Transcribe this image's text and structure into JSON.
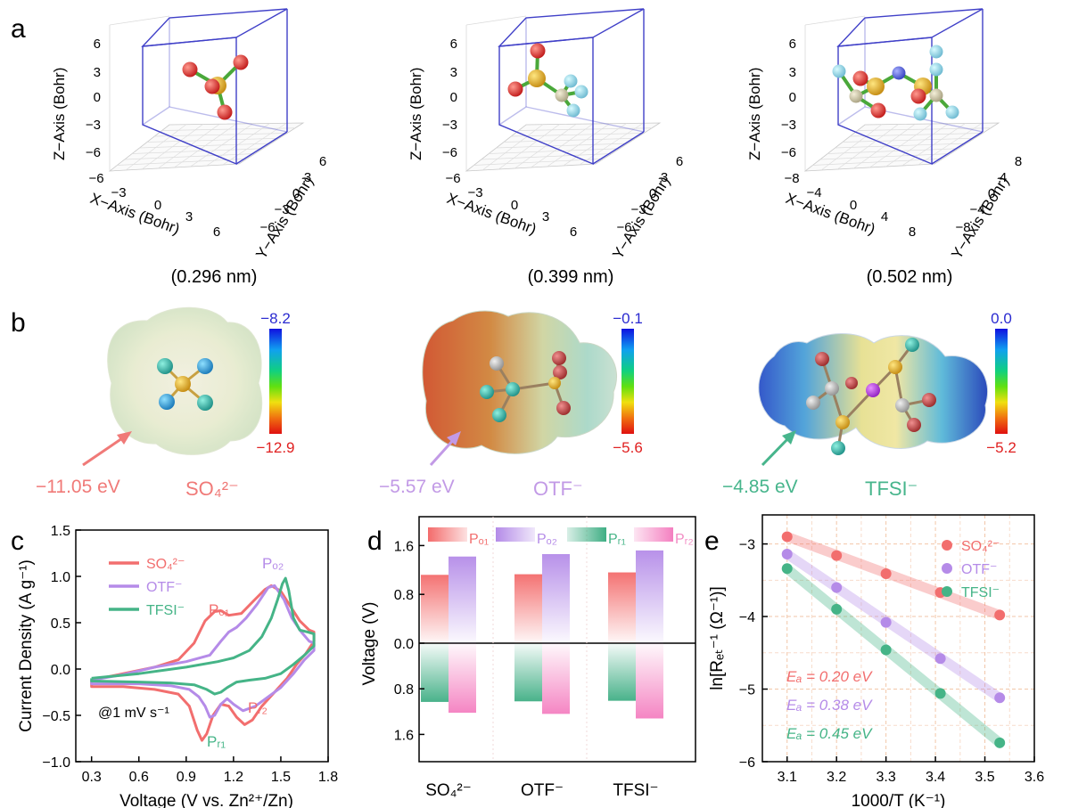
{
  "panel_labels": [
    "a",
    "b",
    "c",
    "d",
    "e"
  ],
  "panel_a": {
    "molecules": [
      {
        "size_label": "(0.296 nm)",
        "x_label": "X−Axis (Bohr)",
        "y_label": "Y−Axis (Bohr)",
        "z_label": "Z−Axis (Bohr)",
        "x_ticks": [
          "−6",
          "−3",
          "0",
          "3",
          "6"
        ],
        "y_ticks": [
          "−6",
          "−3",
          "0",
          "3",
          "6"
        ],
        "z_ticks": [
          "−6",
          "−3",
          "0",
          "3",
          "6"
        ]
      },
      {
        "size_label": "(0.399 nm)",
        "x_label": "X−Axis (Bohr)",
        "y_label": "Y−Axis (Bohr)",
        "z_label": "Z−Axis (Bohr)",
        "x_ticks": [
          "−6",
          "−3",
          "0",
          "3",
          "6"
        ],
        "y_ticks": [
          "−6",
          "−3",
          "0",
          "3",
          "6"
        ],
        "z_ticks": [
          "−6",
          "−3",
          "0",
          "3",
          "6"
        ]
      },
      {
        "size_label": "(0.502 nm)",
        "x_label": "X−Axis (Bohr)",
        "y_label": "Y−Axis (Bohr)",
        "z_label": "Z−Axis (Bohr)",
        "x_ticks": [
          "−8",
          "−4",
          "0",
          "4",
          "8"
        ],
        "y_ticks": [
          "−8",
          "−4",
          "0",
          "4",
          "8"
        ],
        "z_ticks": [
          "−6",
          "−3",
          "0",
          "3",
          "6"
        ]
      }
    ]
  },
  "panel_b": {
    "maps": [
      {
        "ion": "SO₄²⁻",
        "energy": "−11.05 eV",
        "scale_max": "−8.2",
        "scale_min": "−12.9",
        "color": "#f07a78"
      },
      {
        "ion": "OTF⁻",
        "energy": "−5.57 eV",
        "scale_max": "−0.1",
        "scale_min": "−5.6",
        "color": "#c29ae6"
      },
      {
        "ion": "TFSI⁻",
        "energy": "−4.85 eV",
        "scale_max": "0.0",
        "scale_min": "−5.2",
        "color": "#47b58c"
      }
    ]
  },
  "colors": {
    "so4": "#f26e6e",
    "otf": "#b58be8",
    "tfsi": "#45b487",
    "pr2_pink": "#f28bc4"
  },
  "chart_data": [
    {
      "panel": "c",
      "type": "line",
      "xlabel": "Voltage (V vs. Zn²⁺/Zn)",
      "ylabel": "Current Density (A g⁻¹)",
      "xlim": [
        0.2,
        1.8
      ],
      "ylim": [
        -1.0,
        1.5
      ],
      "xticks": [
        "0.3",
        "0.6",
        "0.9",
        "1.2",
        "1.5",
        "1.8"
      ],
      "yticks": [
        "−1.0",
        "−0.5",
        "0.0",
        "0.5",
        "1.0",
        "1.5"
      ],
      "annotation": "@1 mV s⁻¹",
      "peak_labels": [
        "Pₒ₁",
        "Pₒ₂",
        "Pᵣ₁",
        "Pᵣ₂"
      ],
      "legend": [
        "SO₄²⁻",
        "OTF⁻",
        "TFSI⁻"
      ],
      "series": [
        {
          "name": "SO₄²⁻",
          "x": [
            0.3,
            0.5,
            0.7,
            0.85,
            0.95,
            1.02,
            1.08,
            1.12,
            1.17,
            1.25,
            1.33,
            1.4,
            1.44,
            1.5,
            1.56,
            1.62,
            1.68,
            1.71,
            1.71,
            1.66,
            1.6,
            1.54,
            1.46,
            1.38,
            1.32,
            1.27,
            1.22,
            1.17,
            1.12,
            1.07,
            1.03,
            1.0,
            0.97,
            0.92,
            0.85,
            0.7,
            0.5,
            0.3,
            0.3
          ],
          "y": [
            -0.12,
            -0.05,
            0.02,
            0.1,
            0.28,
            0.52,
            0.62,
            0.63,
            0.58,
            0.6,
            0.74,
            0.86,
            0.9,
            0.84,
            0.68,
            0.52,
            0.42,
            0.4,
            0.3,
            0.17,
            0.05,
            -0.1,
            -0.25,
            -0.4,
            -0.55,
            -0.6,
            -0.52,
            -0.4,
            -0.38,
            -0.5,
            -0.7,
            -0.77,
            -0.66,
            -0.4,
            -0.27,
            -0.22,
            -0.19,
            -0.19,
            -0.12
          ]
        },
        {
          "name": "OTF⁻",
          "x": [
            0.3,
            0.5,
            0.7,
            0.9,
            1.05,
            1.12,
            1.17,
            1.22,
            1.28,
            1.35,
            1.42,
            1.46,
            1.52,
            1.57,
            1.63,
            1.68,
            1.71,
            1.71,
            1.65,
            1.58,
            1.5,
            1.42,
            1.34,
            1.26,
            1.2,
            1.16,
            1.12,
            1.08,
            1.05,
            1.02,
            0.98,
            0.92,
            0.8,
            0.6,
            0.3,
            0.3
          ],
          "y": [
            -0.12,
            -0.06,
            0.02,
            0.08,
            0.15,
            0.3,
            0.4,
            0.45,
            0.55,
            0.7,
            0.88,
            0.9,
            0.75,
            0.55,
            0.4,
            0.3,
            0.28,
            0.2,
            0.1,
            -0.05,
            -0.2,
            -0.3,
            -0.4,
            -0.45,
            -0.38,
            -0.32,
            -0.38,
            -0.5,
            -0.52,
            -0.4,
            -0.3,
            -0.22,
            -0.18,
            -0.16,
            -0.16,
            -0.12
          ]
        },
        {
          "name": "TFSI⁻",
          "x": [
            0.3,
            0.6,
            0.9,
            1.1,
            1.2,
            1.3,
            1.38,
            1.44,
            1.48,
            1.51,
            1.53,
            1.55,
            1.58,
            1.62,
            1.67,
            1.71,
            1.71,
            1.65,
            1.58,
            1.5,
            1.4,
            1.3,
            1.22,
            1.16,
            1.12,
            1.08,
            1.03,
            0.95,
            0.8,
            0.6,
            0.3,
            0.3
          ],
          "y": [
            -0.1,
            -0.05,
            0.02,
            0.08,
            0.12,
            0.2,
            0.35,
            0.55,
            0.75,
            0.92,
            0.98,
            0.85,
            0.55,
            0.42,
            0.4,
            0.38,
            0.25,
            0.15,
            0.05,
            -0.05,
            -0.1,
            -0.12,
            -0.14,
            -0.2,
            -0.25,
            -0.27,
            -0.22,
            -0.17,
            -0.15,
            -0.14,
            -0.13,
            -0.1
          ]
        }
      ]
    },
    {
      "panel": "d",
      "type": "bar",
      "ylabel": "Voltage (V)",
      "categories": [
        "SO₄²⁻",
        "OTF⁻",
        "TFSI⁻"
      ],
      "yticks_top": [
        "0.0",
        "0.8",
        "1.6"
      ],
      "yticks_bottom": [
        "0.8",
        "1.6"
      ],
      "ylim": [
        0,
        2.0
      ],
      "legend": [
        "Pₒ₁",
        "Pₒ₂",
        "Pᵣ₁",
        "Pᵣ₂"
      ],
      "series": [
        {
          "name": "Pₒ₁",
          "direction": "up",
          "values": [
            1.12,
            1.13,
            1.16
          ]
        },
        {
          "name": "Pₒ₂",
          "direction": "up",
          "values": [
            1.42,
            1.46,
            1.52
          ]
        },
        {
          "name": "Pᵣ₁",
          "direction": "down",
          "values": [
            1.03,
            1.02,
            1.01
          ]
        },
        {
          "name": "Pᵣ₂",
          "direction": "down",
          "values": [
            1.22,
            1.24,
            1.32
          ]
        }
      ]
    },
    {
      "panel": "e",
      "type": "scatter",
      "xlabel": "1000/T (K⁻¹)",
      "ylabel": "ln[Rₑₜ⁻¹ (Ω⁻¹)]",
      "xlim": [
        3.05,
        3.6
      ],
      "ylim": [
        -6.0,
        -2.6
      ],
      "xticks": [
        "3.1",
        "3.2",
        "3.3",
        "3.4",
        "3.5",
        "3.6"
      ],
      "yticks": [
        "−6",
        "−5",
        "−4",
        "−3"
      ],
      "legend": [
        "SO₄²⁻",
        "OTF⁻",
        "TFSI⁻"
      ],
      "series": [
        {
          "name": "SO₄²⁻",
          "ea": "Eₐ = 0.20 eV",
          "x": [
            3.1,
            3.2,
            3.3,
            3.41,
            3.53
          ],
          "y": [
            -2.9,
            -3.16,
            -3.41,
            -3.67,
            -3.98
          ]
        },
        {
          "name": "OTF⁻",
          "ea": "Eₐ = 0.38 eV",
          "x": [
            3.1,
            3.2,
            3.3,
            3.41,
            3.53
          ],
          "y": [
            -3.14,
            -3.6,
            -4.08,
            -4.58,
            -5.12
          ]
        },
        {
          "name": "TFSI⁻",
          "ea": "Eₐ = 0.45 eV",
          "x": [
            3.1,
            3.2,
            3.3,
            3.41,
            3.53
          ],
          "y": [
            -3.34,
            -3.9,
            -4.46,
            -5.06,
            -5.74
          ]
        }
      ]
    }
  ]
}
